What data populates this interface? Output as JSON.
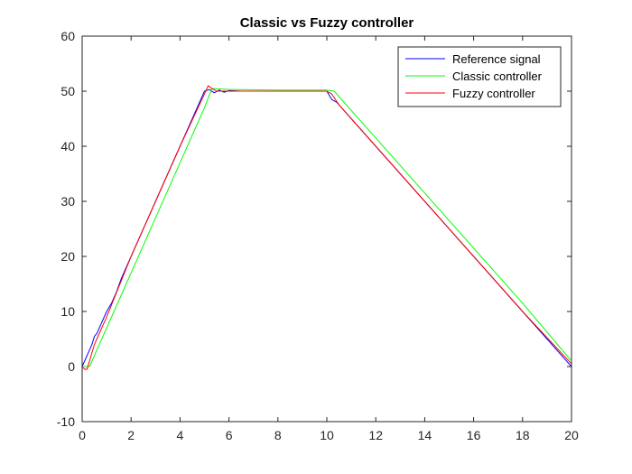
{
  "chart_data": {
    "type": "line",
    "title": "Classic vs Fuzzy controller",
    "xlabel": "",
    "ylabel": "",
    "xlim": [
      0,
      20
    ],
    "ylim": [
      -10,
      60
    ],
    "xticks": [
      0,
      2,
      4,
      6,
      8,
      10,
      12,
      14,
      16,
      18,
      20
    ],
    "yticks": [
      -10,
      0,
      10,
      20,
      30,
      40,
      50,
      60
    ],
    "grid": false,
    "legend_position": "top-right",
    "series": [
      {
        "name": "Reference signal",
        "color": "#0000ff",
        "x": [
          0,
          0.2,
          0.4,
          0.5,
          0.6,
          0.8,
          1.0,
          1.2,
          1.4,
          1.6,
          1.8,
          2.0,
          3.0,
          4.0,
          5.0,
          5.2,
          5.4,
          5.6,
          5.8,
          6.0,
          6.5,
          7.0,
          8.0,
          9.0,
          10.0,
          10.2,
          10.4,
          10.6,
          11.0,
          12.0,
          14.0,
          16.0,
          18.0,
          20.0
        ],
        "y": [
          0,
          2,
          4,
          5.5,
          6,
          8,
          10,
          11.5,
          13.5,
          16,
          18,
          20,
          30,
          40,
          50,
          50.3,
          49.7,
          50.2,
          49.8,
          50.1,
          50,
          50,
          50,
          50,
          50,
          48.5,
          48,
          47,
          45,
          40,
          30,
          20,
          10,
          0
        ]
      },
      {
        "name": "Classic controller",
        "color": "#00ff00",
        "x": [
          0,
          0.3,
          1.0,
          2.0,
          3.0,
          4.0,
          5.0,
          5.3,
          6.0,
          8.0,
          10.0,
          10.3,
          12.0,
          14.0,
          16.0,
          18.0,
          20.0
        ],
        "y": [
          0,
          0,
          7,
          17,
          27,
          37,
          47,
          50.5,
          50.3,
          50.2,
          50.2,
          50,
          41.5,
          31.5,
          21.5,
          11.5,
          1
        ]
      },
      {
        "name": "Fuzzy controller",
        "color": "#ff0000",
        "x": [
          0,
          0.1,
          0.2,
          0.3,
          0.5,
          1.0,
          2.0,
          3.0,
          4.0,
          5.0,
          5.15,
          5.3,
          5.5,
          6.0,
          8.0,
          10.0,
          10.2,
          10.5,
          11.0,
          12.0,
          14.0,
          16.0,
          18.0,
          20.0
        ],
        "y": [
          0,
          -0.5,
          -0.5,
          1,
          4,
          9,
          20,
          30,
          40,
          49.5,
          51,
          50.5,
          50,
          50,
          50,
          50,
          49.5,
          47.5,
          45,
          40,
          30,
          20,
          10,
          0.5
        ]
      }
    ]
  }
}
